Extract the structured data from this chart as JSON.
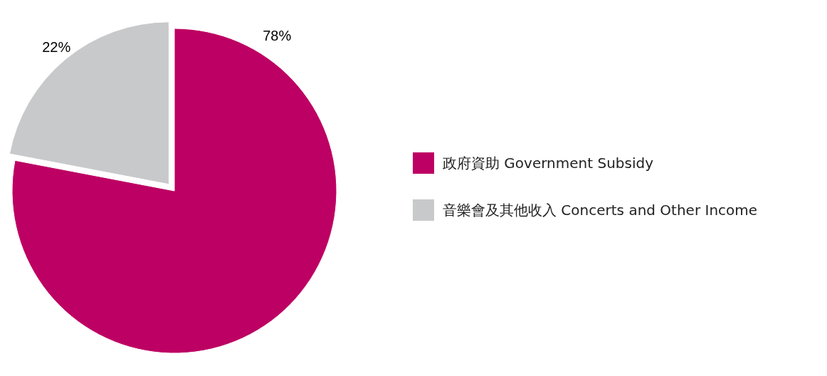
{
  "chart_data": {
    "type": "pie",
    "categories": [
      "政府資助 Government Subsidy",
      "音樂會及其他收入 Concerts and Other Income"
    ],
    "values": [
      78,
      22
    ],
    "colors": [
      "#bd0063",
      "#c8c9cb"
    ],
    "value_labels": [
      "78%",
      "22%"
    ],
    "legend": "right"
  }
}
